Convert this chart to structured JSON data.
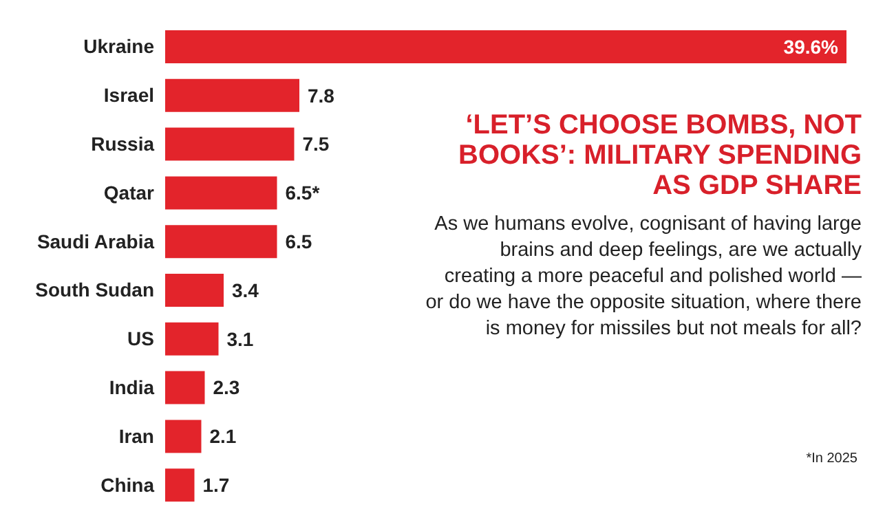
{
  "chart_data": {
    "type": "bar",
    "orientation": "horizontal",
    "title": "‘LET’S CHOOSE BOMBS, NOT BOOKS’: MILITARY SPENDING AS GDP SHARE",
    "subtitle": "As we humans evolve, cognisant of having large brains and deep feelings, are we actually creating a more peaceful and polished world — or do we have the opposite situation, where there is money for missiles but not meals for all?",
    "annotations": [
      "*In 2025"
    ],
    "categories": [
      "Ukraine",
      "Israel",
      "Russia",
      "Qatar",
      "Saudi Arabia",
      "South Sudan",
      "US",
      "India",
      "Iran",
      "China"
    ],
    "values": [
      39.6,
      7.8,
      7.5,
      6.5,
      6.5,
      3.4,
      3.1,
      2.3,
      2.1,
      1.7
    ],
    "value_labels": [
      "39.6%",
      "7.8",
      "7.5",
      "6.5*",
      "6.5",
      "3.4",
      "3.1",
      "2.3",
      "2.1",
      "1.7"
    ],
    "color": "#e3242b",
    "grid": false,
    "legend": false
  }
}
